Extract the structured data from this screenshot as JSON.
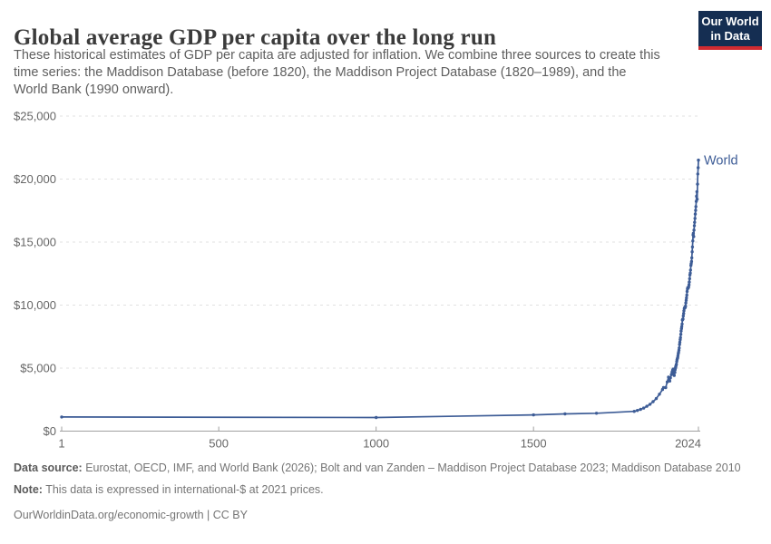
{
  "header": {
    "title": "Global average GDP per capita over the long run",
    "subtitle_lines": [
      "These historical estimates of GDP per capita are adjusted for inflation. We combine three sources to create this",
      "time series: the Maddison Database (before 1820), the Maddison Project Database (1820–1989), and the",
      "World Bank (1990 onward)."
    ],
    "logo": {
      "line1": "Our World",
      "line2": "in Data",
      "bg_color": "#152e52",
      "bar_color": "#d12b31"
    }
  },
  "chart_data": {
    "type": "line",
    "title": "Global average GDP per capita over the long run",
    "xlabel": "",
    "ylabel": "",
    "xlim": [
      1,
      2024
    ],
    "ylim": [
      0,
      25000
    ],
    "grid": "dashed-horizontal",
    "legend": "end-of-line-label",
    "axis_color": "#a1a1a1",
    "grid_color": "#e1e1e1",
    "tick_label_color": "#666666",
    "xticks": [
      {
        "v": 1,
        "label": "1"
      },
      {
        "v": 500,
        "label": "500"
      },
      {
        "v": 1000,
        "label": "1000"
      },
      {
        "v": 1500,
        "label": "1500"
      },
      {
        "v": 2024,
        "label": "2024"
      }
    ],
    "yticks": [
      {
        "v": 0,
        "label": "$0"
      },
      {
        "v": 5000,
        "label": "$5,000"
      },
      {
        "v": 10000,
        "label": "$10,000"
      },
      {
        "v": 15000,
        "label": "$15,000"
      },
      {
        "v": 20000,
        "label": "$20,000"
      },
      {
        "v": 25000,
        "label": "$25,000"
      }
    ],
    "series": [
      {
        "name": "World",
        "color": "#3d5c96",
        "points": [
          [
            1,
            1120
          ],
          [
            1000,
            1080
          ],
          [
            1500,
            1290
          ],
          [
            1600,
            1370
          ],
          [
            1700,
            1420
          ],
          [
            1820,
            1570
          ],
          [
            1830,
            1640
          ],
          [
            1840,
            1730
          ],
          [
            1850,
            1830
          ],
          [
            1860,
            1970
          ],
          [
            1870,
            2130
          ],
          [
            1880,
            2340
          ],
          [
            1890,
            2580
          ],
          [
            1900,
            2930
          ],
          [
            1910,
            3300
          ],
          [
            1913,
            3460
          ],
          [
            1920,
            3450
          ],
          [
            1925,
            3900
          ],
          [
            1929,
            4290
          ],
          [
            1931,
            4010
          ],
          [
            1933,
            3970
          ],
          [
            1935,
            4230
          ],
          [
            1938,
            4490
          ],
          [
            1940,
            4680
          ],
          [
            1942,
            4830
          ],
          [
            1944,
            4920
          ],
          [
            1945,
            4560
          ],
          [
            1947,
            4420
          ],
          [
            1949,
            4660
          ],
          [
            1950,
            4880
          ],
          [
            1951,
            5020
          ],
          [
            1952,
            5120
          ],
          [
            1953,
            5230
          ],
          [
            1954,
            5310
          ],
          [
            1955,
            5520
          ],
          [
            1956,
            5660
          ],
          [
            1957,
            5760
          ],
          [
            1958,
            5820
          ],
          [
            1959,
            5970
          ],
          [
            1960,
            6150
          ],
          [
            1961,
            6260
          ],
          [
            1962,
            6420
          ],
          [
            1963,
            6600
          ],
          [
            1964,
            6870
          ],
          [
            1965,
            7050
          ],
          [
            1966,
            7260
          ],
          [
            1967,
            7420
          ],
          [
            1968,
            7680
          ],
          [
            1969,
            7940
          ],
          [
            1970,
            8130
          ],
          [
            1971,
            8290
          ],
          [
            1972,
            8500
          ],
          [
            1973,
            8810
          ],
          [
            1974,
            8870
          ],
          [
            1975,
            8890
          ],
          [
            1976,
            9140
          ],
          [
            1977,
            9340
          ],
          [
            1978,
            9550
          ],
          [
            1979,
            9730
          ],
          [
            1980,
            9790
          ],
          [
            1981,
            9830
          ],
          [
            1982,
            9800
          ],
          [
            1983,
            9920
          ],
          [
            1984,
            10170
          ],
          [
            1985,
            10380
          ],
          [
            1986,
            10570
          ],
          [
            1987,
            10790
          ],
          [
            1988,
            11080
          ],
          [
            1989,
            11280
          ],
          [
            1990,
            11380
          ],
          [
            1991,
            11350
          ],
          [
            1992,
            11380
          ],
          [
            1993,
            11440
          ],
          [
            1994,
            11610
          ],
          [
            1995,
            11830
          ],
          [
            1996,
            12090
          ],
          [
            1997,
            12390
          ],
          [
            1998,
            12540
          ],
          [
            1999,
            12780
          ],
          [
            2000,
            13150
          ],
          [
            2001,
            13290
          ],
          [
            2002,
            13450
          ],
          [
            2003,
            13750
          ],
          [
            2004,
            14230
          ],
          [
            2005,
            14610
          ],
          [
            2006,
            15090
          ],
          [
            2007,
            15570
          ],
          [
            2008,
            15700
          ],
          [
            2009,
            15430
          ],
          [
            2010,
            15950
          ],
          [
            2011,
            16300
          ],
          [
            2012,
            16570
          ],
          [
            2013,
            16880
          ],
          [
            2014,
            17220
          ],
          [
            2015,
            17520
          ],
          [
            2016,
            17810
          ],
          [
            2017,
            18230
          ],
          [
            2018,
            18630
          ],
          [
            2019,
            19000
          ],
          [
            2020,
            18400
          ],
          [
            2021,
            19600
          ],
          [
            2022,
            20400
          ],
          [
            2023,
            20900
          ],
          [
            2024,
            21500
          ]
        ]
      }
    ]
  },
  "footer": {
    "source_label": "Data source:",
    "source_text": " Eurostat, OECD, IMF, and World Bank (2026); Bolt and van Zanden – Maddison Project Database 2023; Maddison Database 2010",
    "note_label": "Note:",
    "note_text": " This data is expressed in international-$ at 2021 prices.",
    "link_text": "OurWorldinData.org/economic-growth | CC BY"
  }
}
